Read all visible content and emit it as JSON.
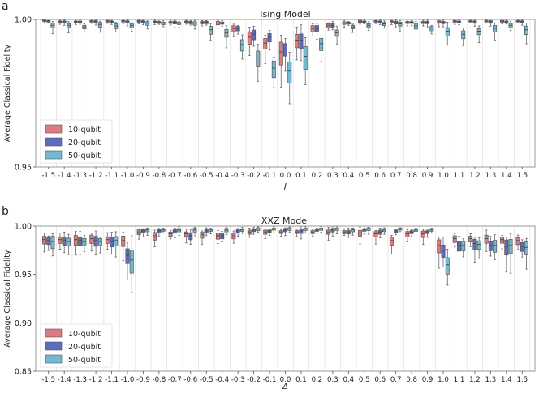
{
  "chart_data": [
    {
      "panel_label": "a",
      "type": "box",
      "title": "Ising Model",
      "xlabel": "J",
      "ylabel": "Average Classical Fidelity",
      "ylim": [
        0.95,
        1.0
      ],
      "yticks": [
        0.95,
        1.0
      ],
      "ytick_labels": [
        "0.95",
        "1.00"
      ],
      "legend_position": "lower-left",
      "grid": "vertical",
      "categories": [
        "-1.5",
        "-1.4",
        "-1.3",
        "-1.2",
        "-1.1",
        "-1.0",
        "-0.9",
        "-0.8",
        "-0.7",
        "-0.6",
        "-0.5",
        "-0.4",
        "-0.3",
        "-0.2",
        "-0.1",
        "0.0",
        "0.1",
        "0.2",
        "0.3",
        "0.4",
        "0.5",
        "0.6",
        "0.7",
        "0.8",
        "0.9",
        "1.0",
        "1.1",
        "1.2",
        "1.3",
        "1.4",
        "1.5"
      ],
      "series": [
        {
          "name": "10-qubit",
          "color": "#e07a80",
          "median": [
            0.9996,
            0.9992,
            0.9992,
            0.9994,
            0.9994,
            0.9994,
            0.9994,
            0.9992,
            0.999,
            0.9992,
            0.999,
            0.9988,
            0.997,
            0.994,
            0.992,
            0.989,
            0.993,
            0.997,
            0.998,
            0.9988,
            0.9994,
            0.9994,
            0.9992,
            0.999,
            0.999,
            0.9992,
            0.9994,
            0.9994,
            0.9994,
            0.9994,
            0.9994
          ]
        },
        {
          "name": "20-qubit",
          "color": "#5b6dbd",
          "median": [
            0.9994,
            0.9992,
            0.9992,
            0.9992,
            0.9992,
            0.9992,
            0.9992,
            0.999,
            0.999,
            0.999,
            0.999,
            0.9988,
            0.997,
            0.995,
            0.994,
            0.99,
            0.993,
            0.997,
            0.998,
            0.9988,
            0.9992,
            0.9992,
            0.999,
            0.999,
            0.999,
            0.999,
            0.9992,
            0.9992,
            0.9992,
            0.9992,
            0.9992
          ]
        },
        {
          "name": "50-qubit",
          "color": "#74b9d1",
          "median": [
            0.998,
            0.998,
            0.9975,
            0.9983,
            0.9978,
            0.998,
            0.9987,
            0.9987,
            0.9987,
            0.9987,
            0.9965,
            0.9955,
            0.9915,
            0.987,
            0.9835,
            0.9825,
            0.9875,
            0.9918,
            0.9955,
            0.9975,
            0.998,
            0.9985,
            0.9985,
            0.9978,
            0.997,
            0.996,
            0.995,
            0.996,
            0.997,
            0.998,
            0.9965
          ]
        }
      ]
    },
    {
      "panel_label": "b",
      "type": "box",
      "title": "XXZ Model",
      "xlabel": "Δ",
      "ylabel": "Average Classical Fidelity",
      "ylim": [
        0.85,
        1.0
      ],
      "yticks": [
        0.85,
        0.9,
        0.95,
        1.0
      ],
      "ytick_labels": [
        "0.85",
        "0.90",
        "0.95",
        "1.00"
      ],
      "legend_position": "lower-left",
      "grid": "vertical",
      "categories": [
        "-1.5",
        "-1.4",
        "-1.3",
        "-1.2",
        "-1.1",
        "-1.0",
        "-0.9",
        "-0.8",
        "-0.7",
        "-0.6",
        "-0.5",
        "-0.4",
        "-0.3",
        "-0.2",
        "-0.1",
        "0.0",
        "0.1",
        "0.2",
        "0.3",
        "0.4",
        "0.5",
        "0.6",
        "0.7",
        "0.8",
        "0.9",
        "1.0",
        "1.1",
        "1.2",
        "1.3",
        "1.4",
        "1.5"
      ],
      "series": [
        {
          "name": "10-qubit",
          "color": "#e07a80",
          "median": [
            0.986,
            0.986,
            0.986,
            0.987,
            0.986,
            0.985,
            0.994,
            0.99,
            0.992,
            0.992,
            0.991,
            0.99,
            0.99,
            0.994,
            0.994,
            0.994,
            0.994,
            0.994,
            0.994,
            0.994,
            0.993,
            0.992,
            0.985,
            0.992,
            0.992,
            0.98,
            0.987,
            0.987,
            0.987,
            0.986,
            0.985
          ]
        },
        {
          "name": "20-qubit",
          "color": "#5b6dbd",
          "median": [
            0.985,
            0.985,
            0.985,
            0.985,
            0.984,
            0.97,
            0.995,
            0.995,
            0.995,
            0.99,
            0.995,
            0.99,
            0.995,
            0.996,
            0.995,
            0.996,
            0.995,
            0.996,
            0.996,
            0.994,
            0.996,
            0.994,
            0.995,
            0.994,
            0.994,
            0.975,
            0.98,
            0.982,
            0.98,
            0.979,
            0.979
          ]
        },
        {
          "name": "50-qubit",
          "color": "#74b9d1",
          "median": [
            0.984,
            0.984,
            0.984,
            0.984,
            0.985,
            0.965,
            0.996,
            0.996,
            0.996,
            0.996,
            0.996,
            0.996,
            0.996,
            0.997,
            0.997,
            0.997,
            0.997,
            0.997,
            0.997,
            0.996,
            0.997,
            0.996,
            0.997,
            0.996,
            0.996,
            0.96,
            0.98,
            0.981,
            0.98,
            0.98,
            0.978
          ]
        }
      ]
    }
  ]
}
